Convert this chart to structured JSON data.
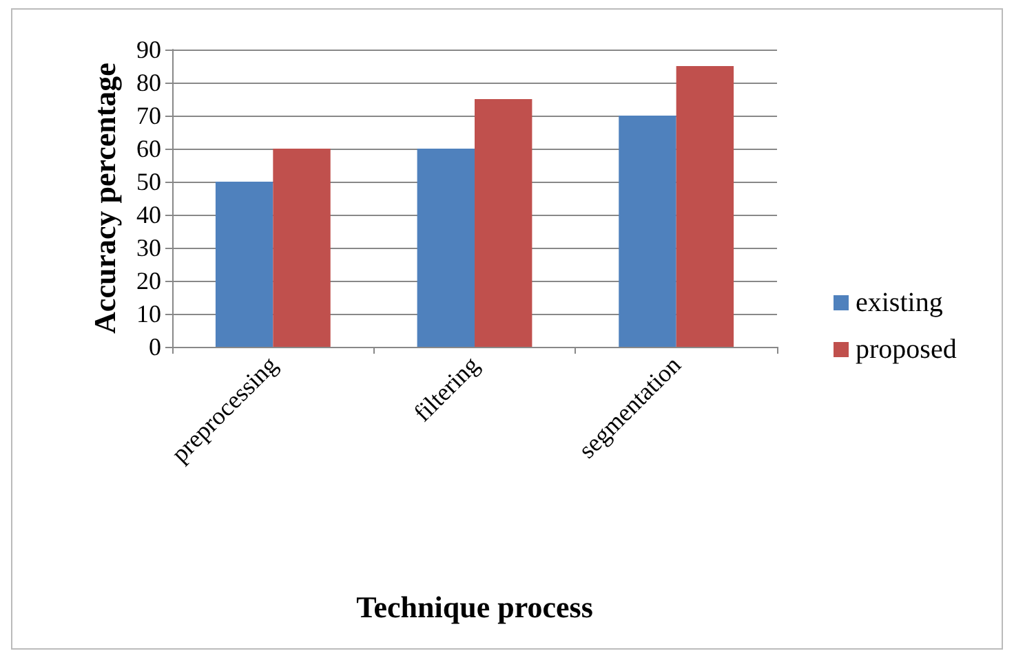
{
  "chart_data": {
    "type": "bar",
    "xlabel": "Technique process",
    "ylabel": "Accuracy percentage",
    "categories": [
      "preprocessing",
      "filtering",
      "segmentation"
    ],
    "series": [
      {
        "name": "existing",
        "color": "#4f81bd",
        "values": [
          50,
          60,
          70
        ]
      },
      {
        "name": "proposed",
        "color": "#c0504d",
        "values": [
          60,
          75,
          85
        ]
      }
    ],
    "ylim": [
      0,
      90
    ],
    "yticks": [
      0,
      10,
      20,
      30,
      40,
      50,
      60,
      70,
      80,
      90
    ],
    "grid": "y",
    "legend": "right"
  }
}
